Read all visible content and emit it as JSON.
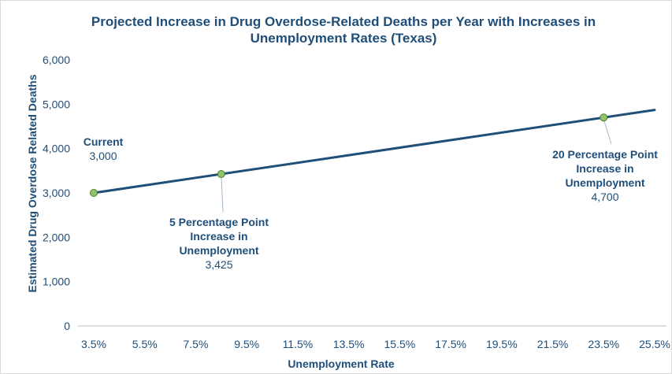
{
  "chart_data": {
    "type": "line",
    "title_lines": [
      "Projected Increase in Drug Overdose-Related Deaths per Year with Increases in",
      "Unemployment Rates (Texas)"
    ],
    "xlabel": "Unemployment Rate",
    "ylabel": "Estimated Drug Overdose Related Deaths",
    "xlim": [
      3.5,
      25.5
    ],
    "ylim": [
      0,
      6000
    ],
    "x_ticks": [
      {
        "value": 3.5,
        "label": "3.5%"
      },
      {
        "value": 5.5,
        "label": "5.5%"
      },
      {
        "value": 7.5,
        "label": "7.5%"
      },
      {
        "value": 9.5,
        "label": "9.5%"
      },
      {
        "value": 11.5,
        "label": "11.5%"
      },
      {
        "value": 13.5,
        "label": "13.5%"
      },
      {
        "value": 15.5,
        "label": "15.5%"
      },
      {
        "value": 17.5,
        "label": "17.5%"
      },
      {
        "value": 19.5,
        "label": "19.5%"
      },
      {
        "value": 21.5,
        "label": "21.5%"
      },
      {
        "value": 23.5,
        "label": "23.5%"
      },
      {
        "value": 25.5,
        "label": "25.5%"
      }
    ],
    "y_ticks": [
      {
        "value": 0,
        "label": "0"
      },
      {
        "value": 1000,
        "label": "1,000"
      },
      {
        "value": 2000,
        "label": "2,000"
      },
      {
        "value": 3000,
        "label": "3,000"
      },
      {
        "value": 4000,
        "label": "4,000"
      },
      {
        "value": 5000,
        "label": "5,000"
      },
      {
        "value": 6000,
        "label": "6,000"
      }
    ],
    "grid": false,
    "legend": "none",
    "line": {
      "x": [
        3.5,
        25.5
      ],
      "y": [
        3000,
        4870
      ]
    },
    "points": [
      {
        "x": 3.5,
        "y": 3000,
        "label_lines": [
          "Current"
        ],
        "value_label": "3,000"
      },
      {
        "x": 8.5,
        "y": 3425,
        "label_lines": [
          "5 Percentage Point",
          "Increase in",
          "Unemployment"
        ],
        "value_label": "3,425"
      },
      {
        "x": 23.5,
        "y": 4700,
        "label_lines": [
          "20 Percentage Point",
          "Increase in",
          "Unemployment"
        ],
        "value_label": "4,700"
      }
    ],
    "colors": {
      "line": "#1f4e79",
      "text": "#1f4e79",
      "marker_fill": "#8fc46a",
      "marker_stroke": "#4f7f2f",
      "axis": "#bfbfbf",
      "leader": "#a6b8d0"
    }
  }
}
